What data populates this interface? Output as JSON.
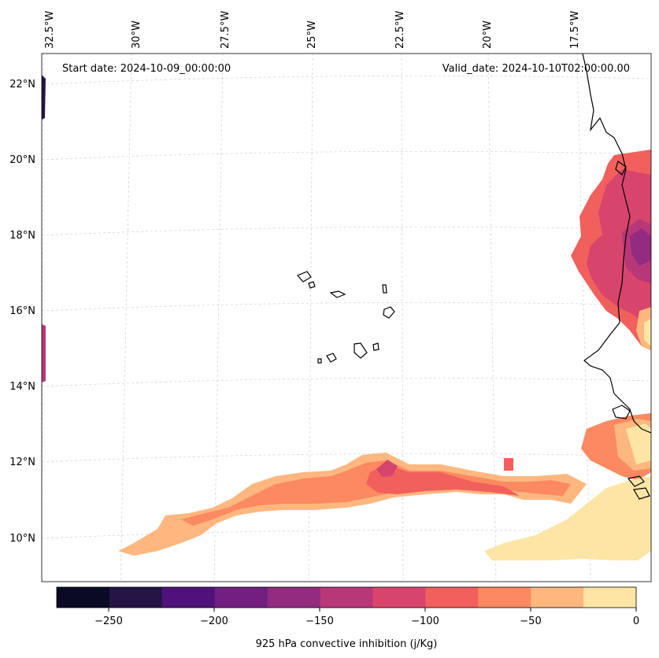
{
  "map": {
    "start_date_text": "Start date: 2024-10-09_00:00:00",
    "valid_date_text": "Valid_date: 2024-10-10T02:00:00.00",
    "longitude_labels": [
      "32.5°W",
      "30°W",
      "27.5°W",
      "25°W",
      "22.5°W",
      "20°W",
      "17.5°W"
    ],
    "latitude_labels": [
      "22°N",
      "20°N",
      "18°N",
      "16°N",
      "14°N",
      "12°N",
      "10°N"
    ],
    "field": "925 hPa convective inhibition",
    "region": "Cape Verde Islands and West African coast"
  },
  "colorbar": {
    "label": "925 hPa convective inhibition (j/Kg)",
    "tick_labels": [
      "−250",
      "−200",
      "−150",
      "−100",
      "−50",
      "0"
    ],
    "levels": [
      -275,
      -250,
      -225,
      -200,
      -175,
      -150,
      -125,
      -100,
      -75,
      -50,
      -25,
      0
    ],
    "colors": [
      "#0b0a24",
      "#241545",
      "#4f127b",
      "#721f81",
      "#932b80",
      "#b73779",
      "#d8456c",
      "#f1605d",
      "#fc8961",
      "#feb77e",
      "#fde5a5"
    ]
  }
}
